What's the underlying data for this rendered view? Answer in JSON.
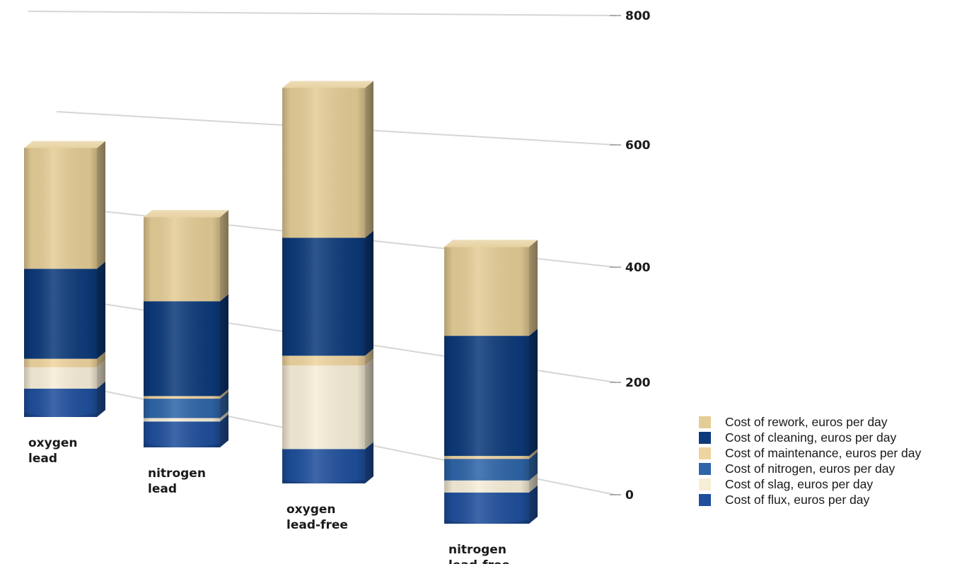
{
  "chart_data": {
    "type": "bar",
    "stacked": true,
    "three_d": true,
    "title": "",
    "xlabel": "",
    "ylabel": "",
    "ylim": [
      0,
      800
    ],
    "yticks": [
      0,
      200,
      400,
      600,
      800
    ],
    "grid": true,
    "legend_position": "bottom-right",
    "categories": [
      [
        "oxygen",
        "lead"
      ],
      [
        "nitrogen",
        "lead"
      ],
      [
        "oxygen",
        "lead-free"
      ],
      [
        "nitrogen",
        "lead-free"
      ]
    ],
    "series": [
      {
        "name": "Cost of flux, euros per day",
        "color": "#1f4f9c",
        "values": [
          60,
          60,
          70,
          65
        ]
      },
      {
        "name": "Cost of slag, euros per day",
        "color": "#f7eed8",
        "values": [
          45,
          8,
          170,
          25
        ]
      },
      {
        "name": "Cost of nitrogen, euros per day",
        "color": "#2f65a8",
        "values": [
          0,
          45,
          0,
          45
        ]
      },
      {
        "name": "Cost of maintenance, euros per day",
        "color": "#efd49f",
        "values": [
          18,
          6,
          20,
          6
        ]
      },
      {
        "name": "Cost of cleaning, euros per day",
        "color": "#0d3a7a",
        "values": [
          190,
          220,
          240,
          250
        ]
      },
      {
        "name": "Cost of rework, euros per day",
        "color": "#e4cc95",
        "values": [
          255,
          195,
          305,
          185
        ]
      }
    ],
    "legend_order": [
      5,
      4,
      3,
      2,
      1,
      0
    ]
  }
}
